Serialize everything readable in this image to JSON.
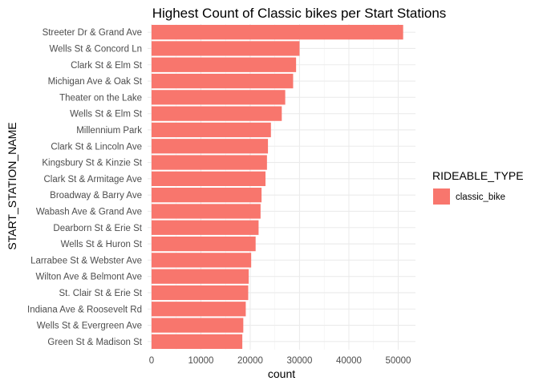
{
  "chart_data": {
    "type": "bar",
    "orientation": "horizontal",
    "title": "Highest Count of Classic bikes per Start Stations",
    "xlabel": "count",
    "ylabel": "START_STATION_NAME",
    "categories": [
      "Streeter Dr & Grand Ave",
      "Wells St & Concord Ln",
      "Clark St & Elm St",
      "Michigan Ave & Oak St",
      "Theater on the Lake",
      "Wells St & Elm St",
      "Millennium Park",
      "Clark St & Lincoln Ave",
      "Kingsbury St & Kinzie St",
      "Clark St & Armitage Ave",
      "Broadway & Barry Ave",
      "Wabash Ave & Grand Ave",
      "Dearborn St & Erie St",
      "Wells St & Huron St",
      "Larrabee St & Webster Ave",
      "Wilton Ave & Belmont Ave",
      "St. Clair St & Erie St",
      "Indiana Ave & Roosevelt Rd",
      "Wells St & Evergreen Ave",
      "Green St & Madison St"
    ],
    "series": [
      {
        "name": "classic_bike",
        "color": "#F8766D",
        "values": [
          51000,
          30000,
          29300,
          28700,
          27100,
          26400,
          24200,
          23600,
          23400,
          23100,
          22300,
          22100,
          21700,
          21100,
          20200,
          19700,
          19600,
          19100,
          18600,
          18400
        ]
      }
    ],
    "xlim": [
      -800,
      53500
    ],
    "xticks": [
      0,
      10000,
      20000,
      30000,
      40000,
      50000
    ],
    "xtick_labels": [
      "0",
      "10000",
      "20000",
      "30000",
      "40000",
      "50000"
    ],
    "grid": true,
    "legend": {
      "title": "RIDEABLE_TYPE",
      "position": "right",
      "entries": [
        "classic_bike"
      ]
    }
  }
}
